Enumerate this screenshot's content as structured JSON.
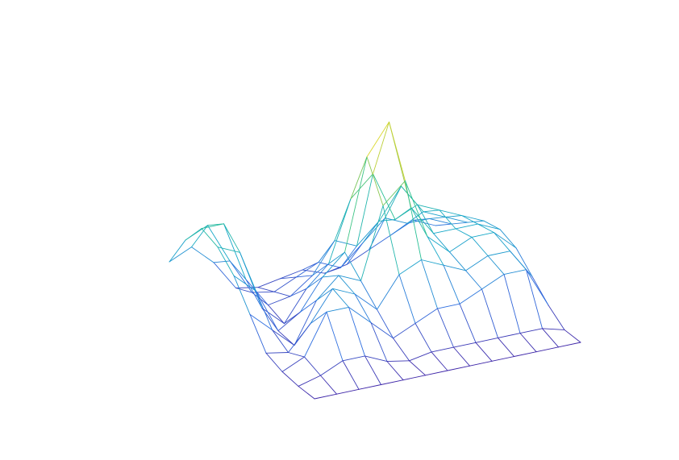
{
  "chart_data": {
    "type": "surface",
    "z": [
      [
        0.3,
        0.35,
        0.25,
        0.1,
        0.08,
        0.1,
        0.12,
        0.08,
        0.1,
        0.15,
        0.2,
        0.25,
        0.2
      ],
      [
        0.45,
        0.5,
        0.3,
        0.12,
        0.1,
        0.15,
        0.2,
        0.15,
        0.25,
        0.35,
        0.3,
        0.3,
        0.25
      ],
      [
        0.55,
        0.55,
        0.25,
        0.1,
        0.12,
        0.2,
        0.35,
        0.3,
        0.4,
        0.55,
        0.4,
        0.35,
        0.3
      ],
      [
        0.5,
        0.45,
        0.15,
        0.05,
        0.2,
        0.3,
        0.6,
        0.7,
        0.45,
        0.5,
        0.45,
        0.4,
        0.35
      ],
      [
        0.4,
        0.3,
        0.08,
        0.15,
        0.3,
        0.4,
        0.85,
        1.0,
        0.55,
        0.4,
        0.4,
        0.4,
        0.35
      ],
      [
        0.25,
        0.15,
        0.05,
        0.25,
        0.35,
        0.3,
        0.65,
        0.75,
        0.45,
        0.35,
        0.4,
        0.4,
        0.3
      ],
      [
        0.1,
        0.08,
        0.2,
        0.35,
        0.3,
        0.2,
        0.35,
        0.4,
        0.35,
        0.3,
        0.35,
        0.35,
        0.2
      ],
      [
        0.05,
        0.1,
        0.3,
        0.3,
        0.2,
        0.1,
        0.15,
        0.2,
        0.2,
        0.25,
        0.3,
        0.3,
        0.1
      ],
      [
        0.02,
        0.05,
        0.1,
        0.1,
        0.05,
        0.03,
        0.05,
        0.05,
        0.05,
        0.05,
        0.05,
        0.05,
        0.02
      ],
      [
        0,
        0,
        0,
        0,
        0,
        0,
        0,
        0,
        0,
        0,
        0,
        0,
        0
      ]
    ],
    "zlim": [
      0,
      1
    ],
    "colormap": [
      "#3e26a8",
      "#2f6fe0",
      "#17a8c8",
      "#2ec38f",
      "#a8c83c",
      "#f9e225"
    ],
    "grid": false
  }
}
